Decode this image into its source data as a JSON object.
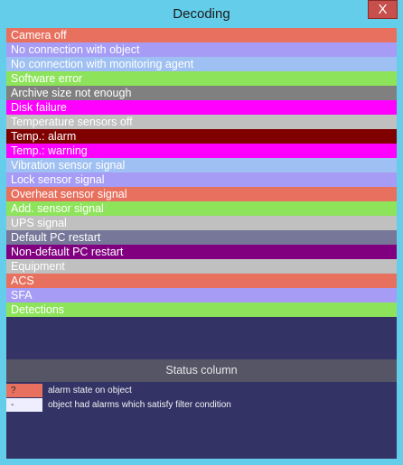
{
  "window": {
    "title": "Decoding",
    "close_label": "X"
  },
  "legend": [
    {
      "label": "Camera off",
      "color": "#e8705e"
    },
    {
      "label": "No connection with object",
      "color": "#a79cf5"
    },
    {
      "label": "No connection with monitoring agent",
      "color": "#9fc0f2"
    },
    {
      "label": "Software error",
      "color": "#8de35a"
    },
    {
      "label": "Archive size not enough",
      "color": "#808080"
    },
    {
      "label": "Disk failure",
      "color": "#ff00ff"
    },
    {
      "label": "Temperature sensors off",
      "color": "#c0c0c0"
    },
    {
      "label": "Temp.: alarm",
      "color": "#800000"
    },
    {
      "label": "Temp.: warning",
      "color": "#ff00ff"
    },
    {
      "label": "Vibration sensor signal",
      "color": "#9fc0f2"
    },
    {
      "label": "Lock sensor signal",
      "color": "#a79cf5"
    },
    {
      "label": "Overheat sensor signal",
      "color": "#e8705e"
    },
    {
      "label": "Add. sensor signal",
      "color": "#8de35a"
    },
    {
      "label": "UPS signal",
      "color": "#c0c0c0"
    },
    {
      "label": "Default PC restart",
      "color": "#777799"
    },
    {
      "label": "Non-default PC restart",
      "color": "#800080"
    },
    {
      "label": "Equipment",
      "color": "#c0c0c0"
    },
    {
      "label": "ACS",
      "color": "#e8705e"
    },
    {
      "label": "SFA",
      "color": "#a79cf5"
    },
    {
      "label": "Detections",
      "color": "#8de35a"
    }
  ],
  "status": {
    "title": "Status column",
    "items": [
      {
        "symbol": "?",
        "color": "#e8705e",
        "description": "alarm state on object"
      },
      {
        "symbol": "-",
        "color": "#eeeeff",
        "description": "object had alarms which satisfy filter condition"
      }
    ]
  }
}
